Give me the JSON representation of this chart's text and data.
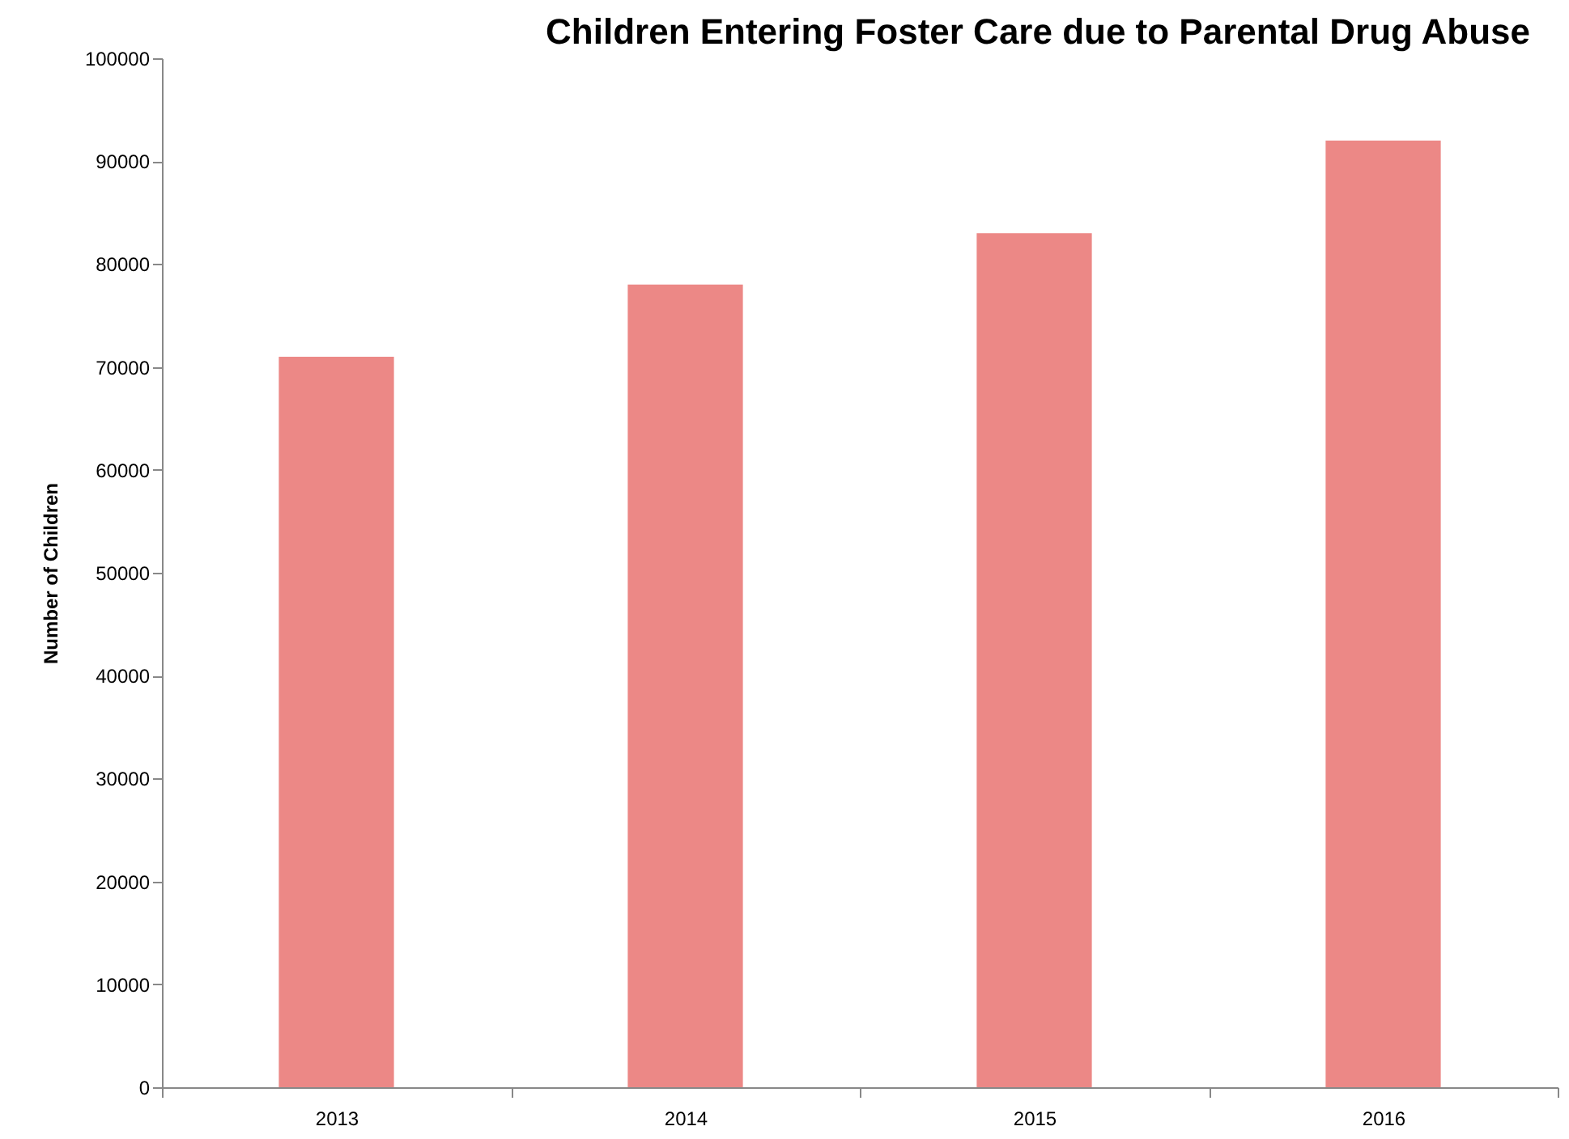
{
  "chart_data": {
    "type": "bar",
    "title": "Children Entering Foster Care due to Parental Drug Abuse",
    "ylabel": "Number of Children",
    "categories": [
      "2013",
      "2014",
      "2015",
      "2016"
    ],
    "values": [
      71000,
      78000,
      83000,
      92000
    ],
    "color": "#ec8886",
    "ylim": [
      0,
      100000
    ],
    "yticks": [
      0,
      10000,
      20000,
      30000,
      40000,
      50000,
      60000,
      70000,
      80000,
      90000,
      100000
    ],
    "grid": false
  }
}
